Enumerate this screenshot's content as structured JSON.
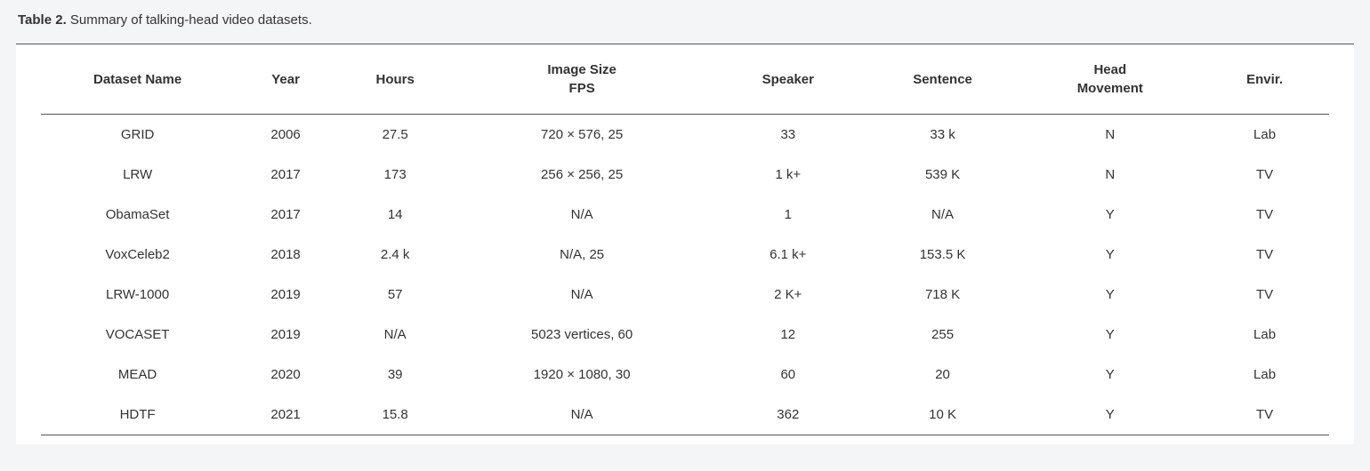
{
  "caption": {
    "label": "Table 2.",
    "text": "Summary of talking-head video datasets."
  },
  "table": {
    "type": "table",
    "background_color": "#ffffff",
    "page_background_color": "#f4f5f6",
    "text_color": "#333333",
    "border_color": "#555555",
    "header_fontsize": 15,
    "cell_fontsize": 15,
    "header_fontweight": 700,
    "columns": [
      {
        "key": "dataset",
        "line1": "Dataset Name",
        "line2": "",
        "width_pct": 15
      },
      {
        "key": "year",
        "line1": "Year",
        "line2": "",
        "width_pct": 8
      },
      {
        "key": "hours",
        "line1": "Hours",
        "line2": "",
        "width_pct": 9
      },
      {
        "key": "imgsize",
        "line1": "Image Size",
        "line2": "FPS",
        "width_pct": 20
      },
      {
        "key": "speaker",
        "line1": "Speaker",
        "line2": "",
        "width_pct": 12
      },
      {
        "key": "sentence",
        "line1": "Sentence",
        "line2": "",
        "width_pct": 12
      },
      {
        "key": "headmv",
        "line1": "Head",
        "line2": "Movement",
        "width_pct": 14
      },
      {
        "key": "envir",
        "line1": "Envir.",
        "line2": "",
        "width_pct": 10
      }
    ],
    "rows": [
      [
        "GRID",
        "2006",
        "27.5",
        "720 × 576, 25",
        "33",
        "33 k",
        "N",
        "Lab"
      ],
      [
        "LRW",
        "2017",
        "173",
        "256 × 256, 25",
        "1 k+",
        "539 K",
        "N",
        "TV"
      ],
      [
        "ObamaSet",
        "2017",
        "14",
        "N/A",
        "1",
        "N/A",
        "Y",
        "TV"
      ],
      [
        "VoxCeleb2",
        "2018",
        "2.4 k",
        "N/A, 25",
        "6.1 k+",
        "153.5 K",
        "Y",
        "TV"
      ],
      [
        "LRW-1000",
        "2019",
        "57",
        "N/A",
        "2 K+",
        "718 K",
        "Y",
        "TV"
      ],
      [
        "VOCASET",
        "2019",
        "N/A",
        "5023 vertices, 60",
        "12",
        "255",
        "Y",
        "Lab"
      ],
      [
        "MEAD",
        "2020",
        "39",
        "1920 × 1080, 30",
        "60",
        "20",
        "Y",
        "Lab"
      ],
      [
        "HDTF",
        "2021",
        "15.8",
        "N/A",
        "362",
        "10 K",
        "Y",
        "TV"
      ]
    ]
  }
}
